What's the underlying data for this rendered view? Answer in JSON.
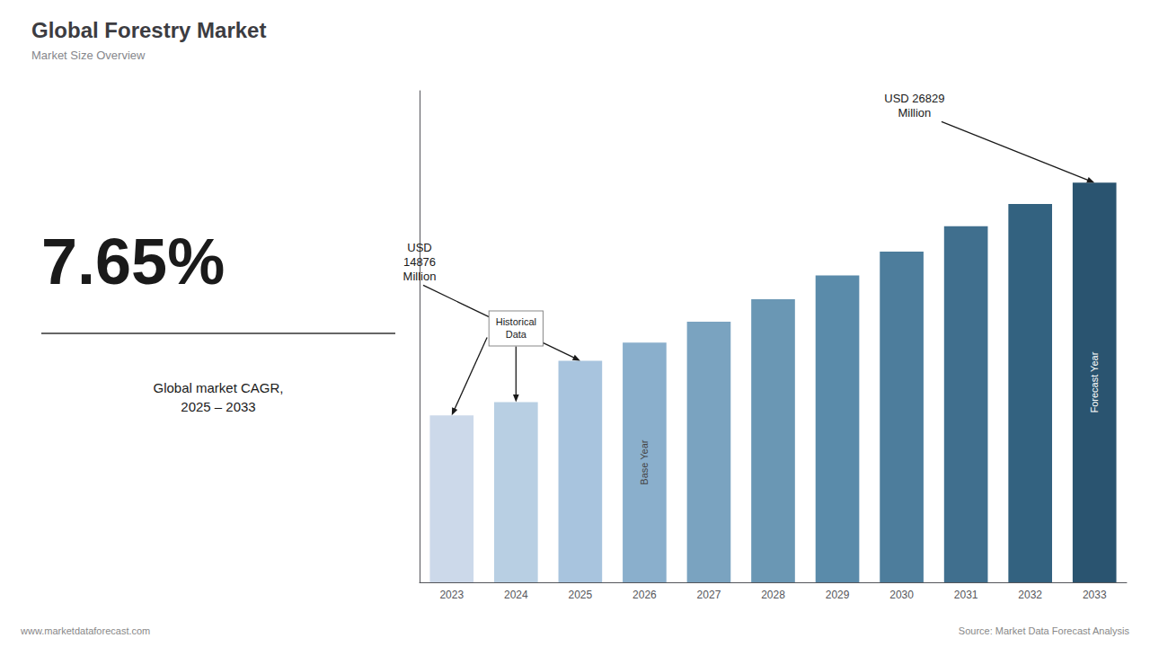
{
  "chart_data": {
    "type": "bar",
    "title": "Global Forestry Market",
    "subtitle": "Market Size Overview",
    "categories": [
      "2023",
      "2024",
      "2025",
      "2026",
      "2027",
      "2028",
      "2029",
      "2030",
      "2031",
      "2032",
      "2033"
    ],
    "values": [
      11200,
      12100,
      14876,
      16100,
      17500,
      19000,
      20600,
      22200,
      23900,
      25400,
      26829
    ],
    "colors": [
      "#ccd9ea",
      "#b8cfe3",
      "#a8c4de",
      "#8aafcc",
      "#7aa3c0",
      "#6a97b4",
      "#5a8baa",
      "#4d7d9c",
      "#406f8e",
      "#336280",
      "#2a5470"
    ],
    "ylim": [
      0,
      33000
    ],
    "grid": false,
    "tick_labels": "x",
    "annotations": [
      {
        "text": "7.65%"
      },
      {
        "text": "Global market CAGR,\n2025 – 2033"
      },
      {
        "text": "USD\n14876\nMillion",
        "points_to": [
          "2025"
        ]
      },
      {
        "text": "Historical\nData",
        "points_to": [
          "2024",
          "2023"
        ]
      },
      {
        "text": "USD 26829\nMillion",
        "points_to": [
          "2033"
        ]
      },
      {
        "text": "Base Year",
        "inside": "2026"
      },
      {
        "text": "Forecast Year",
        "inside": "2033"
      },
      {
        "text": "www.marketdataforecast.com"
      },
      {
        "text": "Source: Market Data Forecast Analysis"
      }
    ]
  }
}
